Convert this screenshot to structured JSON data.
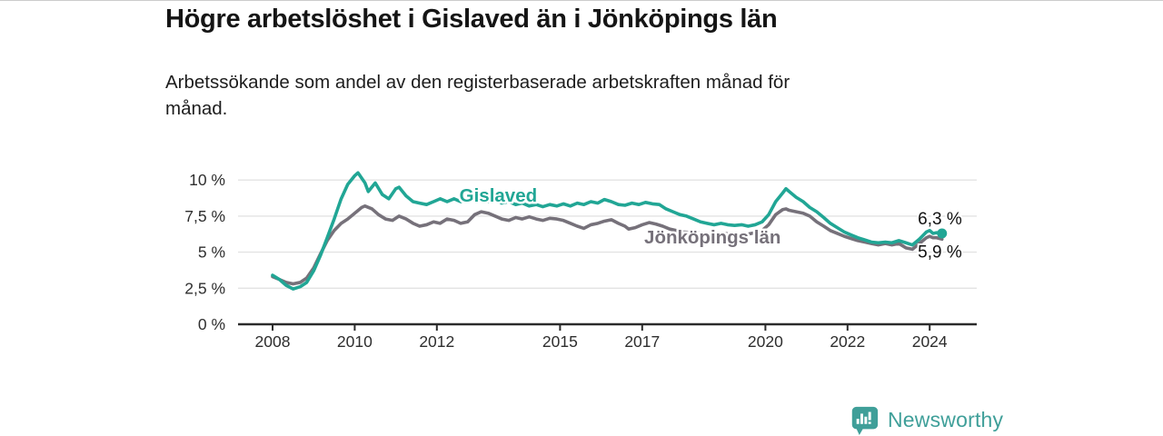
{
  "page": {
    "background": "#ffffff",
    "top_rule_color": "#cccccc"
  },
  "header": {
    "title": "Högre arbetslöshet i Gislaved än i Jönköpings län",
    "subtitle": "Arbetssökande som andel av den registerbaserade arbetskraften månad för månad."
  },
  "footer": {
    "brand": "Newsworthy",
    "brand_color": "#3f9f99",
    "logo_icon": "bar-chart-speech-bubble-icon"
  },
  "chart_data": {
    "type": "line",
    "title": "Högre arbetslöshet i Gislaved än i Jönköpings län",
    "subtitle": "Arbetssökande som andel av den registerbaserade arbetskraften månad för månad.",
    "x_unit": "decimal_year",
    "xlim": [
      2007.15,
      2025.15
    ],
    "ylim": [
      0,
      10.5
    ],
    "grid": true,
    "legend_position": "inline-labels",
    "colors": {
      "gridline": "#e3e3e3",
      "axis": "#2b2b2b",
      "tick_text": "#2e2e2e",
      "value_label_text": "#111111"
    },
    "yticks": [
      {
        "value": 0,
        "label": "0 %"
      },
      {
        "value": 2.5,
        "label": "2,5 %"
      },
      {
        "value": 5,
        "label": "5 %"
      },
      {
        "value": 7.5,
        "label": "7,5 %"
      },
      {
        "value": 10,
        "label": "10 %"
      }
    ],
    "xticks": [
      {
        "value": 2008,
        "label": "2008"
      },
      {
        "value": 2010,
        "label": "2010"
      },
      {
        "value": 2012,
        "label": "2012"
      },
      {
        "value": 2015,
        "label": "2015"
      },
      {
        "value": 2017,
        "label": "2017"
      },
      {
        "value": 2020,
        "label": "2020"
      },
      {
        "value": 2022,
        "label": "2022"
      },
      {
        "value": 2024,
        "label": "2024"
      }
    ],
    "series": [
      {
        "name": "Jönköpings län",
        "color": "#76717a",
        "label_pos": {
          "x": 2017.05,
          "y": 5.6
        },
        "value_label": "5,9 %",
        "value_label_offset": {
          "dx": -28,
          "dy": 20
        },
        "end_dot": false,
        "points": [
          [
            2008.0,
            3.3
          ],
          [
            2008.17,
            3.1
          ],
          [
            2008.33,
            2.9
          ],
          [
            2008.5,
            2.8
          ],
          [
            2008.67,
            2.9
          ],
          [
            2008.83,
            3.2
          ],
          [
            2009.0,
            3.9
          ],
          [
            2009.17,
            4.9
          ],
          [
            2009.33,
            5.8
          ],
          [
            2009.5,
            6.5
          ],
          [
            2009.67,
            7.0
          ],
          [
            2009.83,
            7.3
          ],
          [
            2010.0,
            7.7
          ],
          [
            2010.17,
            8.1
          ],
          [
            2010.25,
            8.2
          ],
          [
            2010.42,
            8.0
          ],
          [
            2010.58,
            7.6
          ],
          [
            2010.75,
            7.3
          ],
          [
            2010.92,
            7.2
          ],
          [
            2011.08,
            7.5
          ],
          [
            2011.25,
            7.3
          ],
          [
            2011.42,
            7.0
          ],
          [
            2011.58,
            6.8
          ],
          [
            2011.75,
            6.9
          ],
          [
            2011.92,
            7.1
          ],
          [
            2012.08,
            7.0
          ],
          [
            2012.25,
            7.3
          ],
          [
            2012.42,
            7.2
          ],
          [
            2012.58,
            7.0
          ],
          [
            2012.75,
            7.1
          ],
          [
            2012.92,
            7.6
          ],
          [
            2013.08,
            7.8
          ],
          [
            2013.25,
            7.7
          ],
          [
            2013.42,
            7.5
          ],
          [
            2013.58,
            7.3
          ],
          [
            2013.75,
            7.2
          ],
          [
            2013.92,
            7.4
          ],
          [
            2014.08,
            7.3
          ],
          [
            2014.25,
            7.45
          ],
          [
            2014.42,
            7.3
          ],
          [
            2014.58,
            7.2
          ],
          [
            2014.75,
            7.35
          ],
          [
            2014.92,
            7.3
          ],
          [
            2015.08,
            7.2
          ],
          [
            2015.25,
            7.0
          ],
          [
            2015.42,
            6.8
          ],
          [
            2015.58,
            6.65
          ],
          [
            2015.75,
            6.9
          ],
          [
            2015.92,
            7.0
          ],
          [
            2016.08,
            7.15
          ],
          [
            2016.25,
            7.25
          ],
          [
            2016.42,
            7.0
          ],
          [
            2016.58,
            6.8
          ],
          [
            2016.67,
            6.6
          ],
          [
            2016.83,
            6.7
          ],
          [
            2017.0,
            6.9
          ],
          [
            2017.17,
            7.05
          ],
          [
            2017.33,
            6.95
          ],
          [
            2017.5,
            6.8
          ],
          [
            2017.67,
            6.6
          ],
          [
            2017.83,
            6.5
          ],
          [
            2018.0,
            6.4
          ],
          [
            2018.25,
            6.35
          ],
          [
            2018.5,
            6.3
          ],
          [
            2018.75,
            6.25
          ],
          [
            2019.0,
            6.3
          ],
          [
            2019.25,
            6.2
          ],
          [
            2019.5,
            6.2
          ],
          [
            2019.75,
            6.35
          ],
          [
            2019.92,
            6.5
          ],
          [
            2020.08,
            6.9
          ],
          [
            2020.25,
            7.6
          ],
          [
            2020.42,
            7.95
          ],
          [
            2020.5,
            8.0
          ],
          [
            2020.58,
            7.9
          ],
          [
            2020.75,
            7.8
          ],
          [
            2020.92,
            7.7
          ],
          [
            2021.08,
            7.5
          ],
          [
            2021.25,
            7.1
          ],
          [
            2021.42,
            6.8
          ],
          [
            2021.58,
            6.5
          ],
          [
            2021.75,
            6.3
          ],
          [
            2021.92,
            6.1
          ],
          [
            2022.08,
            5.95
          ],
          [
            2022.25,
            5.8
          ],
          [
            2022.42,
            5.7
          ],
          [
            2022.58,
            5.6
          ],
          [
            2022.75,
            5.5
          ],
          [
            2022.92,
            5.6
          ],
          [
            2023.08,
            5.5
          ],
          [
            2023.25,
            5.6
          ],
          [
            2023.42,
            5.3
          ],
          [
            2023.58,
            5.2
          ],
          [
            2023.75,
            5.6
          ],
          [
            2023.92,
            6.0
          ],
          [
            2024.0,
            6.1
          ],
          [
            2024.08,
            6.0
          ],
          [
            2024.17,
            6.0
          ],
          [
            2024.3,
            5.9
          ]
        ]
      },
      {
        "name": "Gislaved",
        "color": "#21a695",
        "label_pos": {
          "x": 2012.55,
          "y": 8.5
        },
        "value_label": "6,3 %",
        "value_label_offset": {
          "dx": -28,
          "dy": -10
        },
        "end_dot": true,
        "points": [
          [
            2008.0,
            3.4
          ],
          [
            2008.17,
            3.1
          ],
          [
            2008.33,
            2.7
          ],
          [
            2008.5,
            2.45
          ],
          [
            2008.67,
            2.6
          ],
          [
            2008.83,
            2.9
          ],
          [
            2009.0,
            3.7
          ],
          [
            2009.17,
            4.8
          ],
          [
            2009.33,
            6.0
          ],
          [
            2009.5,
            7.3
          ],
          [
            2009.67,
            8.7
          ],
          [
            2009.83,
            9.7
          ],
          [
            2010.0,
            10.3
          ],
          [
            2010.08,
            10.5
          ],
          [
            2010.25,
            9.8
          ],
          [
            2010.33,
            9.2
          ],
          [
            2010.5,
            9.8
          ],
          [
            2010.67,
            9.0
          ],
          [
            2010.83,
            8.7
          ],
          [
            2011.0,
            9.4
          ],
          [
            2011.08,
            9.5
          ],
          [
            2011.25,
            8.9
          ],
          [
            2011.42,
            8.5
          ],
          [
            2011.58,
            8.4
          ],
          [
            2011.75,
            8.3
          ],
          [
            2011.92,
            8.5
          ],
          [
            2012.08,
            8.7
          ],
          [
            2012.25,
            8.5
          ],
          [
            2012.42,
            8.7
          ],
          [
            2012.58,
            8.5
          ],
          [
            2012.75,
            8.6
          ],
          [
            2012.87,
            8.6
          ],
          [
            2012.95,
            9.05
          ],
          [
            2013.04,
            8.6
          ],
          [
            2013.25,
            8.5
          ],
          [
            2013.42,
            8.6
          ],
          [
            2013.58,
            8.4
          ],
          [
            2013.75,
            8.5
          ],
          [
            2013.92,
            8.3
          ],
          [
            2014.08,
            8.4
          ],
          [
            2014.25,
            8.2
          ],
          [
            2014.42,
            8.3
          ],
          [
            2014.58,
            8.15
          ],
          [
            2014.75,
            8.3
          ],
          [
            2014.92,
            8.2
          ],
          [
            2015.08,
            8.35
          ],
          [
            2015.25,
            8.2
          ],
          [
            2015.42,
            8.4
          ],
          [
            2015.58,
            8.3
          ],
          [
            2015.75,
            8.5
          ],
          [
            2015.92,
            8.4
          ],
          [
            2016.08,
            8.65
          ],
          [
            2016.25,
            8.5
          ],
          [
            2016.42,
            8.3
          ],
          [
            2016.58,
            8.25
          ],
          [
            2016.75,
            8.4
          ],
          [
            2016.92,
            8.3
          ],
          [
            2017.08,
            8.45
          ],
          [
            2017.25,
            8.35
          ],
          [
            2017.42,
            8.3
          ],
          [
            2017.58,
            8.0
          ],
          [
            2017.75,
            7.8
          ],
          [
            2017.92,
            7.6
          ],
          [
            2018.08,
            7.5
          ],
          [
            2018.25,
            7.3
          ],
          [
            2018.42,
            7.1
          ],
          [
            2018.58,
            7.0
          ],
          [
            2018.75,
            6.9
          ],
          [
            2018.92,
            7.0
          ],
          [
            2019.08,
            6.9
          ],
          [
            2019.25,
            6.85
          ],
          [
            2019.42,
            6.9
          ],
          [
            2019.58,
            6.8
          ],
          [
            2019.75,
            6.9
          ],
          [
            2019.92,
            7.1
          ],
          [
            2020.08,
            7.6
          ],
          [
            2020.25,
            8.5
          ],
          [
            2020.42,
            9.1
          ],
          [
            2020.5,
            9.4
          ],
          [
            2020.58,
            9.2
          ],
          [
            2020.75,
            8.8
          ],
          [
            2020.92,
            8.5
          ],
          [
            2021.08,
            8.1
          ],
          [
            2021.25,
            7.8
          ],
          [
            2021.42,
            7.4
          ],
          [
            2021.58,
            7.0
          ],
          [
            2021.75,
            6.7
          ],
          [
            2021.92,
            6.4
          ],
          [
            2022.08,
            6.2
          ],
          [
            2022.25,
            6.0
          ],
          [
            2022.42,
            5.85
          ],
          [
            2022.58,
            5.7
          ],
          [
            2022.75,
            5.65
          ],
          [
            2022.92,
            5.7
          ],
          [
            2023.08,
            5.65
          ],
          [
            2023.25,
            5.8
          ],
          [
            2023.42,
            5.65
          ],
          [
            2023.58,
            5.5
          ],
          [
            2023.75,
            5.9
          ],
          [
            2023.92,
            6.4
          ],
          [
            2024.0,
            6.5
          ],
          [
            2024.08,
            6.3
          ],
          [
            2024.17,
            6.35
          ],
          [
            2024.3,
            6.3
          ]
        ]
      }
    ]
  }
}
